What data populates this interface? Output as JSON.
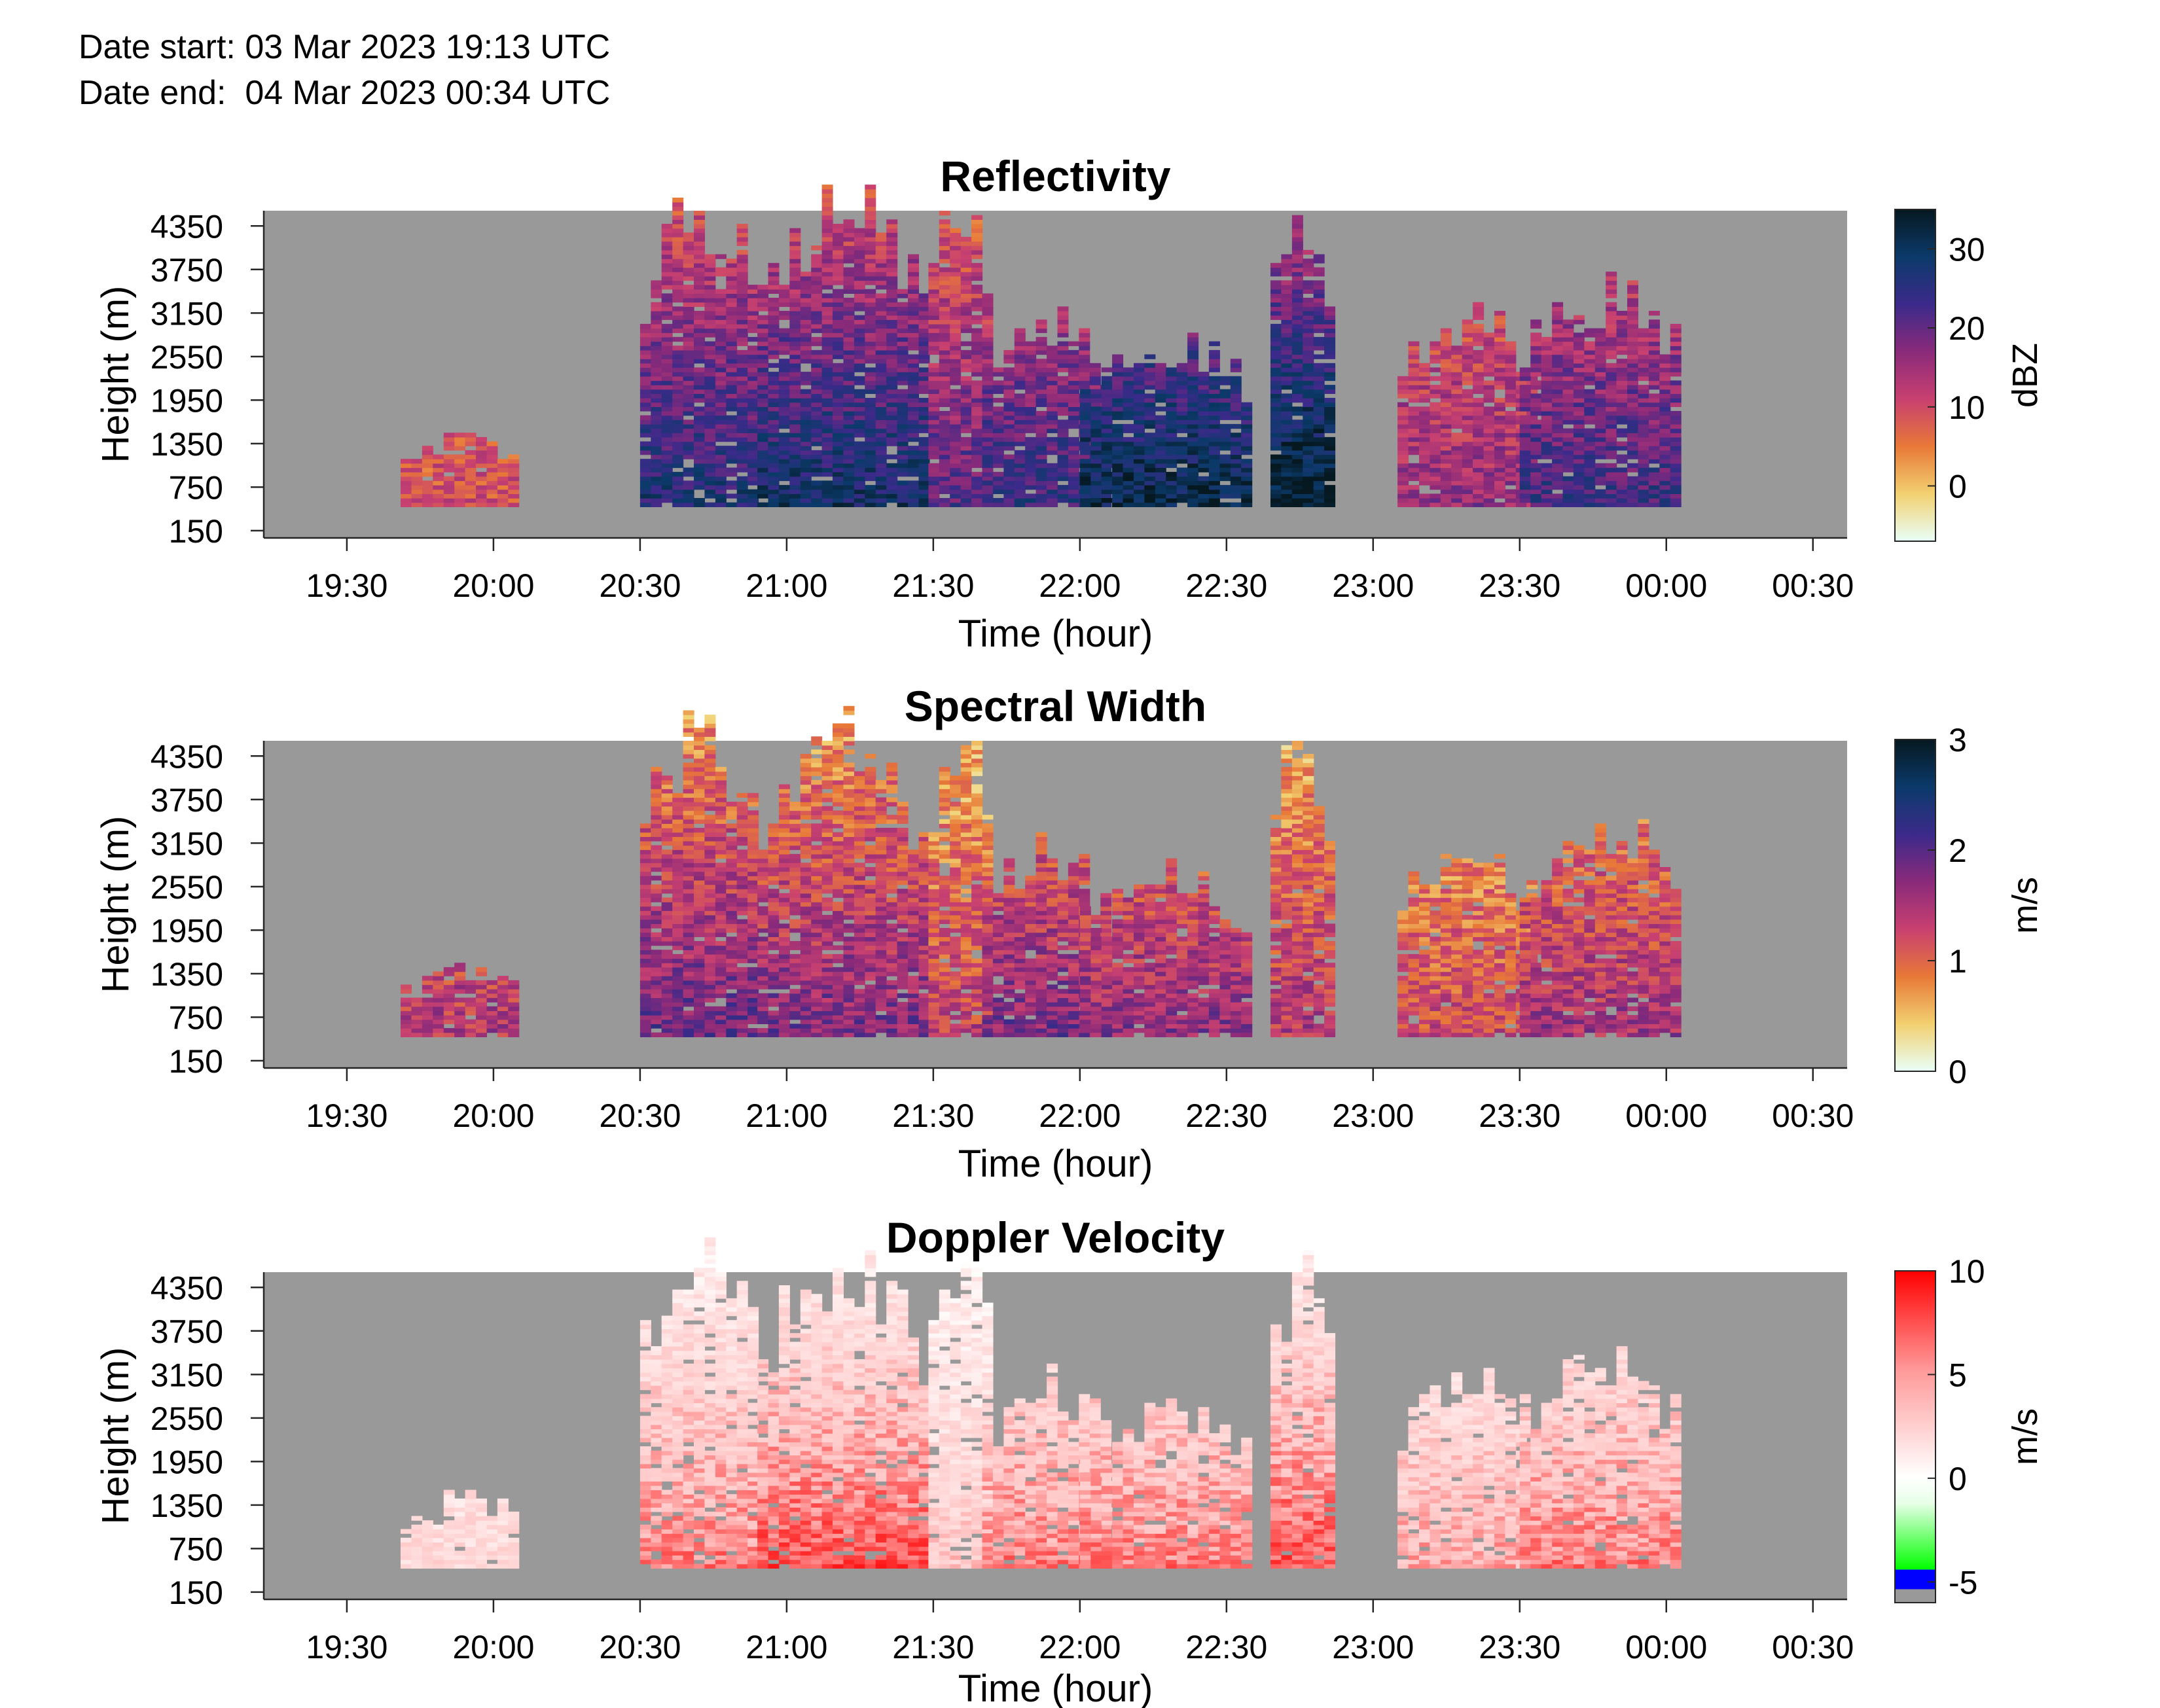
{
  "header": {
    "date_start": "Date start: 03 Mar 2023 19:13 UTC",
    "date_end": "Date end:  04 Mar 2023 00:34 UTC"
  },
  "colors": {
    "no_data": "#999999",
    "reflectivity_colormap": [
      "#e8fff8",
      "#f2d070",
      "#e87838",
      "#c84070",
      "#8a2a7a",
      "#3b2a8a",
      "#0b3a6a",
      "#061820"
    ],
    "spectral_width_colormap": [
      "#e8fff8",
      "#f2d070",
      "#e87838",
      "#c84070",
      "#8a2a7a",
      "#3b2a8a",
      "#0b3a6a",
      "#061820"
    ],
    "doppler_colormap": [
      "#ff0000",
      "#ffe8e8",
      "#ffffff",
      "#40ff40",
      "#0000ff",
      "#999999"
    ]
  },
  "chart_data": [
    {
      "type": "heatmap",
      "title": "Reflectivity",
      "xlabel": "Time (hour)",
      "ylabel": "Height (m)",
      "x_ticks": [
        "19:30",
        "20:00",
        "20:30",
        "21:00",
        "21:30",
        "22:00",
        "22:30",
        "23:00",
        "23:30",
        "00:00",
        "00:30"
      ],
      "y_ticks": [
        "4350",
        "3750",
        "3150",
        "2550",
        "1950",
        "1350",
        "750",
        "150"
      ],
      "colorbar": {
        "label": "dBZ",
        "ticks": [
          "30",
          "20",
          "10",
          "0"
        ],
        "range": [
          -7,
          35
        ]
      },
      "echo_cells": [
        {
          "start": "19:41",
          "end": "20:05",
          "top_m": 1400,
          "value": 9
        },
        {
          "start": "20:30",
          "end": "20:54",
          "top_m": 4500,
          "value": 25
        },
        {
          "start": "20:54",
          "end": "21:27",
          "top_m": 4500,
          "value": 27
        },
        {
          "start": "21:29",
          "end": "21:42",
          "top_m": 4500,
          "value": 20
        },
        {
          "start": "21:40",
          "end": "22:05",
          "top_m": 3000,
          "value": 23
        },
        {
          "start": "22:00",
          "end": "22:35",
          "top_m": 2600,
          "value": 30
        },
        {
          "start": "22:39",
          "end": "22:50",
          "top_m": 4500,
          "value": 33
        },
        {
          "start": "23:05",
          "end": "23:32",
          "top_m": 3000,
          "value": 15
        },
        {
          "start": "23:30",
          "end": "00:02",
          "top_m": 3300,
          "value": 22
        }
      ]
    },
    {
      "type": "heatmap",
      "title": "Spectral Width",
      "xlabel": "Time (hour)",
      "ylabel": "Height (m)",
      "x_ticks": [
        "19:30",
        "20:00",
        "20:30",
        "21:00",
        "21:30",
        "22:00",
        "22:30",
        "23:00",
        "23:30",
        "00:00",
        "00:30"
      ],
      "y_ticks": [
        "4350",
        "3750",
        "3150",
        "2550",
        "1950",
        "1350",
        "750",
        "150"
      ],
      "colorbar": {
        "label": "m/s",
        "ticks": [
          "3",
          "2",
          "1",
          "0"
        ],
        "range": [
          0,
          3
        ]
      },
      "echo_cells": [
        {
          "start": "19:41",
          "end": "20:05",
          "top_m": 1400,
          "value": 1.3
        },
        {
          "start": "20:30",
          "end": "20:54",
          "top_m": 4500,
          "value": 1.7
        },
        {
          "start": "20:54",
          "end": "21:27",
          "top_m": 4500,
          "value": 1.6
        },
        {
          "start": "21:29",
          "end": "21:42",
          "top_m": 4500,
          "value": 1.2
        },
        {
          "start": "21:40",
          "end": "22:05",
          "top_m": 3000,
          "value": 1.6
        },
        {
          "start": "22:00",
          "end": "22:35",
          "top_m": 2600,
          "value": 1.5
        },
        {
          "start": "22:39",
          "end": "22:50",
          "top_m": 4500,
          "value": 1.3
        },
        {
          "start": "23:05",
          "end": "23:32",
          "top_m": 3000,
          "value": 1.1
        },
        {
          "start": "23:30",
          "end": "00:02",
          "top_m": 3300,
          "value": 1.4
        }
      ]
    },
    {
      "type": "heatmap",
      "title": "Doppler Velocity",
      "xlabel": "Time (hour)",
      "ylabel": "Height (m)",
      "x_ticks": [
        "19:30",
        "20:00",
        "20:30",
        "21:00",
        "21:30",
        "22:00",
        "22:30",
        "23:00",
        "23:30",
        "00:00",
        "00:30"
      ],
      "y_ticks": [
        "4350",
        "3750",
        "3150",
        "2550",
        "1950",
        "1350",
        "750",
        "150"
      ],
      "colorbar": {
        "label": "m/s",
        "ticks": [
          "10",
          "5",
          "0",
          "-5"
        ],
        "range": [
          -6,
          10
        ]
      },
      "echo_cells": [
        {
          "start": "19:41",
          "end": "20:05",
          "top_m": 1400,
          "value": 3
        },
        {
          "start": "20:30",
          "end": "20:54",
          "top_m": 4500,
          "value": 6
        },
        {
          "start": "20:54",
          "end": "21:27",
          "top_m": 4500,
          "value": 7
        },
        {
          "start": "21:29",
          "end": "21:42",
          "top_m": 4500,
          "value": 4
        },
        {
          "start": "21:40",
          "end": "22:05",
          "top_m": 3000,
          "value": 6
        },
        {
          "start": "22:00",
          "end": "22:35",
          "top_m": 2600,
          "value": 6
        },
        {
          "start": "22:39",
          "end": "22:50",
          "top_m": 4500,
          "value": 7
        },
        {
          "start": "23:05",
          "end": "23:32",
          "top_m": 3000,
          "value": 5
        },
        {
          "start": "23:30",
          "end": "00:02",
          "top_m": 3300,
          "value": 6
        }
      ]
    }
  ]
}
